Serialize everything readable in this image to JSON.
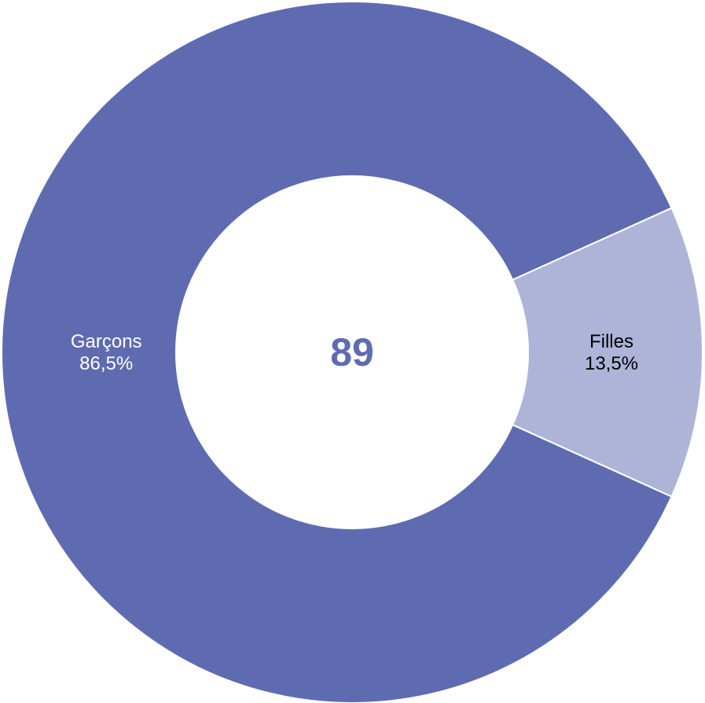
{
  "chart_data": {
    "type": "pie",
    "variant": "donut",
    "center_label": "89",
    "slices": [
      {
        "name": "Filles",
        "value": 13.5,
        "label": "13,5%",
        "color": "#aeb4d8",
        "label_color": "#000000"
      },
      {
        "name": "Garçons",
        "value": 86.5,
        "label": "86,5%",
        "color": "#5f6bb1",
        "label_color": "#ffffff"
      }
    ],
    "legend": "none",
    "colors": {
      "center_text": "#5f6bb1",
      "separator": "#ffffff"
    }
  }
}
